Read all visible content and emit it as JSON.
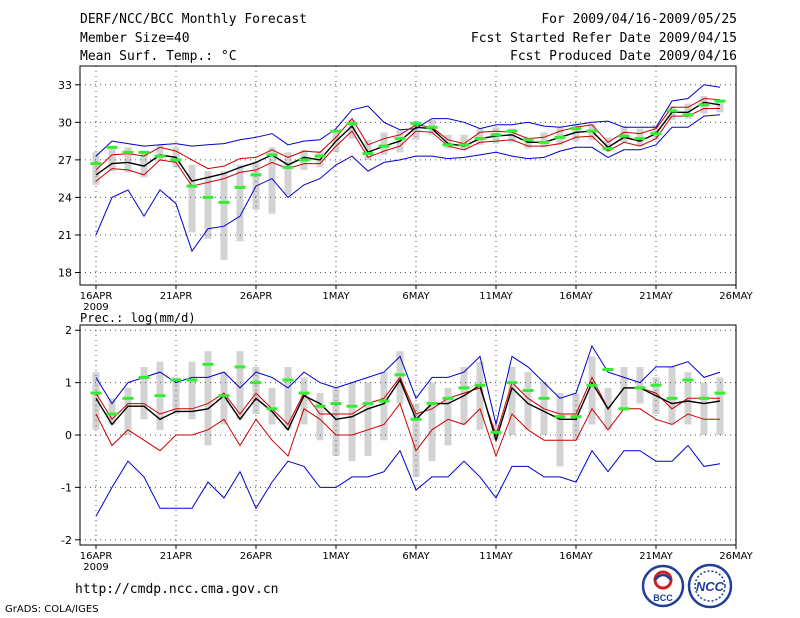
{
  "header": {
    "title": "DERF/NCC/BCC Monthly Forecast",
    "member_size": "Member Size=40",
    "variable": "Mean Surf. Temp.: °C",
    "period": "For 2009/04/16-2009/05/25",
    "started": "Fcst Started Refer Date 2009/04/15",
    "produced": "Fcst Produced Date 2009/04/16"
  },
  "footer": {
    "url": "http://cmdp.ncc.cma.gov.cn",
    "grads": "GrADS: COLA/IGES",
    "logo_bcc": "BCC",
    "logo_ncc": "NCC"
  },
  "colors": {
    "spread": "#0000cc",
    "ensemble": "#000000",
    "quartile": "#cc0000",
    "box": "#d3d3d3",
    "median": "#33ee33"
  },
  "chart_data": [
    {
      "type": "line",
      "title": "Mean Surf. Temp.: °C",
      "year_label": "2009",
      "x_tick_labels": [
        "16APR",
        "21APR",
        "26APR",
        "1MAY",
        "6MAY",
        "11MAY",
        "16MAY",
        "21MAY",
        "26MAY"
      ],
      "x_tick_days": [
        0,
        5,
        10,
        15,
        20,
        25,
        30,
        35,
        40
      ],
      "ylim": [
        17,
        34.5
      ],
      "y_ticks": [
        18,
        21,
        24,
        27,
        30,
        33
      ],
      "grid": true,
      "days": [
        0,
        1,
        2,
        3,
        4,
        5,
        6,
        7,
        8,
        9,
        10,
        11,
        12,
        13,
        14,
        15,
        16,
        17,
        18,
        19,
        20,
        21,
        22,
        23,
        24,
        25,
        26,
        27,
        28,
        29,
        30,
        31,
        32,
        33,
        34,
        35,
        36,
        37,
        38,
        39
      ],
      "series": [
        {
          "name": "max",
          "values": [
            27.3,
            28.5,
            28.3,
            28.1,
            28.2,
            28.3,
            28.1,
            28.2,
            28.3,
            28.6,
            28.8,
            29.1,
            28.2,
            28.5,
            28.6,
            29.5,
            31.0,
            31.3,
            30.0,
            29.4,
            29.5,
            30.3,
            30.3,
            30.0,
            29.5,
            29.8,
            29.8,
            30.0,
            29.7,
            29.6,
            29.8,
            30.0,
            30.1,
            29.6,
            29.6,
            29.6,
            31.7,
            31.9,
            33.0,
            32.8
          ]
        },
        {
          "name": "upper_quartile",
          "values": [
            26.2,
            27.4,
            27.5,
            27.3,
            28.0,
            27.7,
            27.0,
            26.3,
            26.5,
            27.1,
            27.2,
            27.8,
            27.2,
            27.7,
            27.6,
            28.8,
            30.3,
            28.2,
            28.7,
            29.0,
            29.8,
            29.6,
            28.6,
            28.3,
            29.2,
            29.3,
            29.2,
            28.7,
            28.8,
            29.3,
            29.6,
            29.8,
            28.4,
            29.2,
            29.1,
            29.5,
            31.2,
            31.2,
            31.9,
            31.8
          ]
        },
        {
          "name": "ensemble_mean",
          "values": [
            25.8,
            26.7,
            26.8,
            26.5,
            27.4,
            27.2,
            25.3,
            25.6,
            25.9,
            26.4,
            26.8,
            27.4,
            26.6,
            27.2,
            27.0,
            28.5,
            29.7,
            27.6,
            28.1,
            28.5,
            29.6,
            29.5,
            28.3,
            28.1,
            28.7,
            28.9,
            29.0,
            28.4,
            28.4,
            28.8,
            29.2,
            29.3,
            28.0,
            28.8,
            28.5,
            29.1,
            30.8,
            30.8,
            31.6,
            31.4
          ]
        },
        {
          "name": "lower_quartile",
          "values": [
            25.3,
            26.3,
            26.2,
            25.8,
            27.0,
            26.8,
            24.9,
            25.2,
            25.5,
            26.0,
            26.2,
            26.8,
            26.3,
            26.7,
            26.7,
            28.1,
            29.3,
            27.2,
            27.7,
            28.1,
            29.3,
            29.2,
            28.1,
            27.8,
            28.4,
            28.5,
            28.6,
            28.1,
            28.1,
            28.3,
            28.8,
            28.9,
            27.7,
            28.4,
            28.1,
            28.7,
            30.5,
            30.5,
            31.1,
            31.1
          ]
        },
        {
          "name": "min",
          "values": [
            21.0,
            24.0,
            24.6,
            22.5,
            24.6,
            23.5,
            19.7,
            21.5,
            21.7,
            22.5,
            24.9,
            25.5,
            24.0,
            25.0,
            25.5,
            26.6,
            27.3,
            26.1,
            26.8,
            27.0,
            27.3,
            27.3,
            27.1,
            27.2,
            27.4,
            27.6,
            27.3,
            27.1,
            27.2,
            27.7,
            28.0,
            28.0,
            27.2,
            27.8,
            27.8,
            28.2,
            29.6,
            29.6,
            30.5,
            30.6
          ]
        }
      ],
      "bars": {
        "name": "member_range",
        "lows": [
          25.0,
          26.1,
          26.0,
          25.6,
          26.9,
          26.4,
          21.2,
          20.7,
          19.0,
          20.5,
          23.0,
          22.7,
          24.2,
          26.2,
          26.4,
          27.6,
          28.7,
          27.0,
          27.4,
          27.6,
          28.6,
          29.0,
          27.9,
          27.8,
          28.2,
          28.3,
          28.4,
          27.9,
          28.0,
          28.2,
          28.5,
          28.6,
          27.7,
          28.4,
          28.1,
          28.6,
          30.2,
          30.3,
          30.7,
          30.8
        ],
        "highs": [
          27.6,
          27.9,
          28.0,
          27.7,
          28.2,
          28.0,
          26.6,
          26.1,
          26.1,
          26.6,
          26.8,
          28.0,
          27.6,
          27.8,
          27.7,
          29.2,
          30.2,
          28.6,
          29.2,
          29.4,
          30.1,
          30.2,
          29.0,
          29.0,
          29.5,
          29.6,
          29.5,
          28.8,
          29.2,
          29.6,
          29.9,
          29.9,
          28.8,
          29.7,
          29.5,
          29.8,
          31.3,
          31.5,
          32.1,
          31.8
        ]
      },
      "medians": [
        26.7,
        28.0,
        27.6,
        27.6,
        27.3,
        27.0,
        24.9,
        24.0,
        23.6,
        24.8,
        25.8,
        27.4,
        26.4,
        27.0,
        27.3,
        29.3,
        29.9,
        27.5,
        28.1,
        28.7,
        29.9,
        29.6,
        28.2,
        28.2,
        28.7,
        29.0,
        29.3,
        28.6,
        28.4,
        28.8,
        29.5,
        29.3,
        27.9,
        28.9,
        28.7,
        29.1,
        30.9,
        30.6,
        31.4,
        31.7
      ]
    },
    {
      "type": "line",
      "title": "Prec.: log(mm/d)",
      "year_label": "2009",
      "x_tick_labels": [
        "16APR",
        "21APR",
        "26APR",
        "1MAY",
        "6MAY",
        "11MAY",
        "16MAY",
        "21MAY",
        "26MAY"
      ],
      "x_tick_days": [
        0,
        5,
        10,
        15,
        20,
        25,
        30,
        35,
        40
      ],
      "ylim": [
        -2.1,
        2.1
      ],
      "y_ticks": [
        -2,
        -1,
        0,
        1,
        2
      ],
      "grid": true,
      "days": [
        0,
        1,
        2,
        3,
        4,
        5,
        6,
        7,
        8,
        9,
        10,
        11,
        12,
        13,
        14,
        15,
        16,
        17,
        18,
        19,
        20,
        21,
        22,
        23,
        24,
        25,
        26,
        27,
        28,
        29,
        30,
        31,
        32,
        33,
        34,
        35,
        36,
        37,
        38,
        39
      ],
      "series": [
        {
          "name": "max",
          "values": [
            1.1,
            0.6,
            1.0,
            1.1,
            1.2,
            1.0,
            1.1,
            1.1,
            1.2,
            0.9,
            1.2,
            1.1,
            0.9,
            1.2,
            1.0,
            0.9,
            1.0,
            1.1,
            1.2,
            1.5,
            0.7,
            1.1,
            1.1,
            1.2,
            1.5,
            0.2,
            1.5,
            1.3,
            1.0,
            0.7,
            0.8,
            1.7,
            1.2,
            1.1,
            1.0,
            1.3,
            1.3,
            1.4,
            1.1,
            1.2
          ]
        },
        {
          "name": "upper_quartile",
          "values": [
            0.8,
            0.3,
            0.6,
            0.6,
            0.4,
            0.5,
            0.5,
            0.6,
            0.8,
            0.4,
            0.8,
            0.5,
            0.2,
            0.8,
            0.4,
            0.4,
            0.4,
            0.6,
            0.7,
            1.1,
            0.4,
            0.5,
            0.7,
            0.8,
            0.9,
            0.0,
            1.0,
            0.7,
            0.5,
            0.4,
            0.4,
            1.1,
            0.5,
            0.9,
            0.9,
            0.8,
            0.5,
            0.7,
            0.7,
            0.7
          ]
        },
        {
          "name": "ensemble_mean",
          "values": [
            0.7,
            0.2,
            0.55,
            0.55,
            0.3,
            0.45,
            0.45,
            0.5,
            0.75,
            0.3,
            0.7,
            0.45,
            0.1,
            0.75,
            0.6,
            0.3,
            0.35,
            0.5,
            0.6,
            1.05,
            0.3,
            0.6,
            0.6,
            0.75,
            0.95,
            -0.1,
            0.9,
            0.6,
            0.45,
            0.3,
            0.3,
            1.0,
            0.5,
            0.9,
            0.9,
            0.75,
            0.6,
            0.65,
            0.6,
            0.65
          ]
        },
        {
          "name": "lower_quartile",
          "values": [
            0.4,
            -0.2,
            0.1,
            -0.1,
            -0.3,
            0.0,
            0.0,
            0.1,
            0.3,
            -0.2,
            0.3,
            -0.1,
            -0.4,
            0.5,
            0.3,
            0.0,
            0.0,
            0.1,
            0.2,
            0.6,
            -0.3,
            0.1,
            0.3,
            0.2,
            0.5,
            -0.4,
            0.4,
            0.1,
            -0.1,
            -0.1,
            -0.1,
            0.5,
            0.1,
            0.5,
            0.5,
            0.3,
            0.2,
            0.4,
            0.3,
            0.3
          ]
        },
        {
          "name": "min",
          "values": [
            -1.55,
            -1.0,
            -0.5,
            -0.8,
            -1.4,
            -1.4,
            -1.4,
            -0.9,
            -1.2,
            -0.7,
            -1.4,
            -0.9,
            -0.5,
            -0.6,
            -1.0,
            -1.0,
            -0.8,
            -0.8,
            -0.7,
            -0.3,
            -1.05,
            -0.8,
            -0.8,
            -0.5,
            -0.8,
            -1.2,
            -0.6,
            -0.6,
            -0.8,
            -0.8,
            -0.9,
            -0.3,
            -0.7,
            -0.3,
            -0.3,
            -0.5,
            -0.5,
            -0.2,
            -0.6,
            -0.55
          ]
        }
      ],
      "bars": {
        "name": "member_range",
        "lows": [
          0.1,
          0.2,
          0.0,
          0.3,
          0.1,
          0.4,
          0.3,
          -0.2,
          0.2,
          0.3,
          0.4,
          0.2,
          0.1,
          0.2,
          -0.1,
          -0.4,
          -0.5,
          -0.4,
          -0.1,
          0.6,
          -0.8,
          -0.5,
          -0.2,
          0.2,
          0.1,
          -0.1,
          0.0,
          0.1,
          0.0,
          -0.6,
          -0.1,
          0.2,
          0.1,
          0.5,
          0.6,
          0.4,
          0.2,
          0.2,
          0.0,
          0.0
        ],
        "highs": [
          1.2,
          0.7,
          0.9,
          1.3,
          1.4,
          1.1,
          1.4,
          1.6,
          1.2,
          1.6,
          1.3,
          0.9,
          1.3,
          1.1,
          0.8,
          0.9,
          1.0,
          1.0,
          1.2,
          1.6,
          0.6,
          1.0,
          0.9,
          1.3,
          1.4,
          0.2,
          1.3,
          1.2,
          1.0,
          0.8,
          0.8,
          1.5,
          0.9,
          1.3,
          1.3,
          1.1,
          1.3,
          1.2,
          1.0,
          1.1
        ]
      },
      "medians": [
        0.8,
        0.4,
        0.7,
        1.1,
        0.75,
        1.05,
        1.05,
        1.35,
        0.75,
        1.3,
        1.0,
        0.5,
        1.05,
        0.8,
        0.55,
        0.6,
        0.55,
        0.6,
        0.65,
        1.15,
        0.3,
        0.6,
        0.7,
        0.9,
        0.95,
        0.05,
        1.0,
        0.85,
        0.7,
        0.35,
        0.35,
        0.95,
        1.25,
        0.5,
        0.9,
        0.95,
        0.7,
        1.05,
        0.7,
        0.8
      ]
    }
  ]
}
